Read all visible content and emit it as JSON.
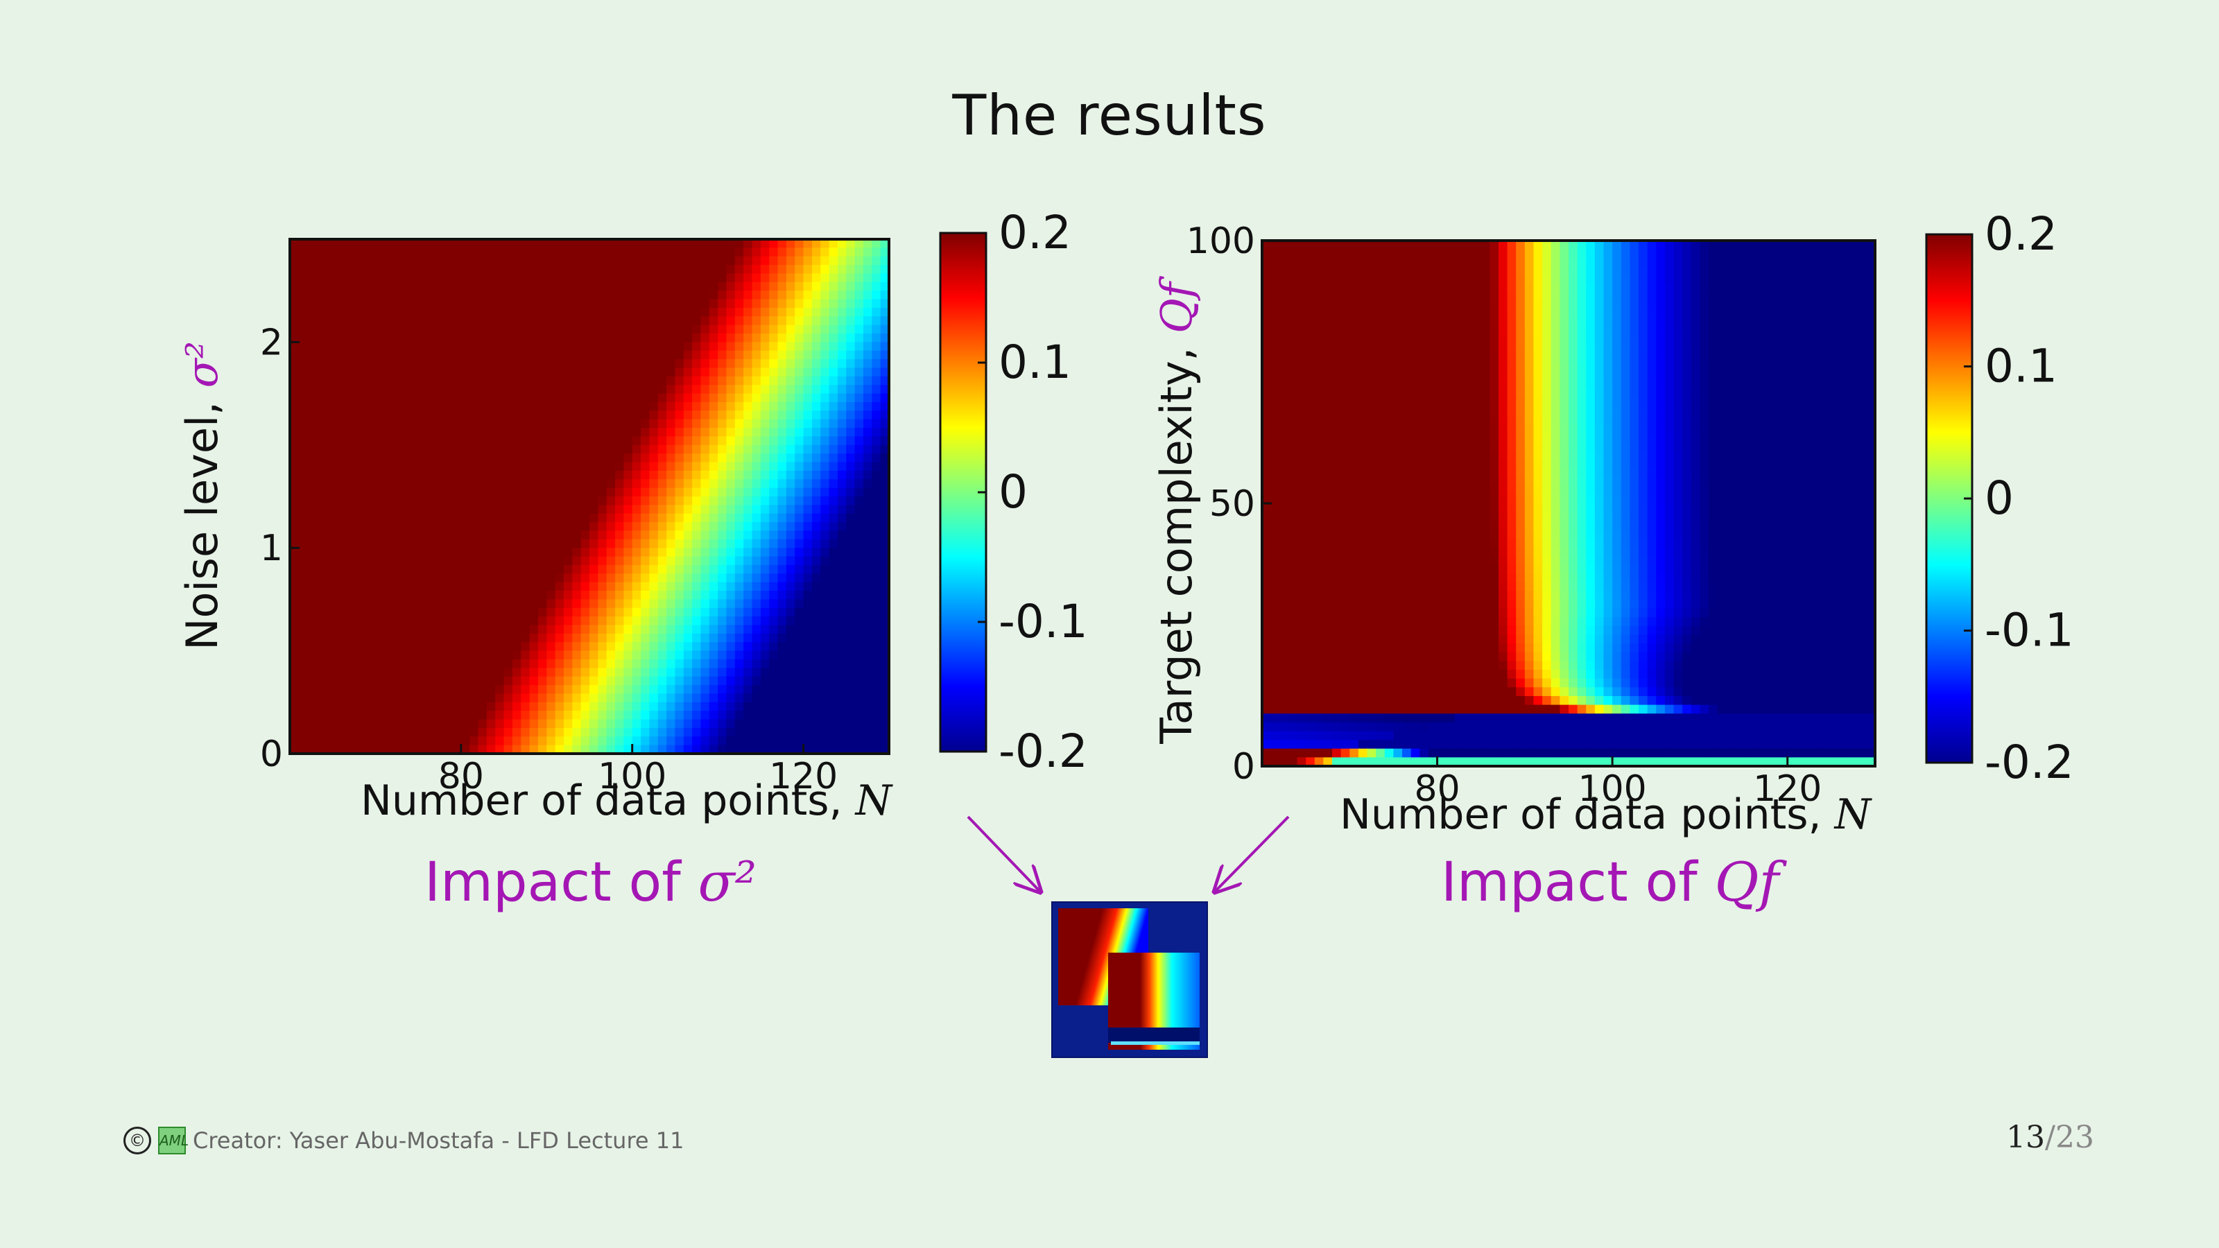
{
  "slide": {
    "title": "The results",
    "page_current": "13",
    "page_total": "23",
    "footer_text": "Creator: Yaser Abu-Mostafa - LFD Lecture 11",
    "copyright_symbol": "©",
    "logo_text": "AML"
  },
  "colors": {
    "background": "#e7f3e7",
    "caption": "#a417b4",
    "arrow": "#a417b4",
    "colormap": "jet"
  },
  "chart_data": [
    {
      "type": "heatmap",
      "ylabel_text": "Noise level, ",
      "ylabel_symbol": "σ²",
      "xlabel_text": "Number of data points, ",
      "xlabel_symbol": "N",
      "caption_text": "Impact of ",
      "caption_symbol": "σ²",
      "xlim": [
        60,
        130
      ],
      "ylim": [
        0,
        2.5
      ],
      "x_ticks": [
        "80",
        "100",
        "120"
      ],
      "y_ticks": [
        "0",
        "1",
        "2"
      ],
      "colorbar": {
        "range": [
          -0.2,
          0.2
        ],
        "ticks": [
          "0.2",
          "0.1",
          "0",
          "-0.1",
          "-0.2"
        ]
      },
      "description_values": {
        "boundary_N_at_sigma0": 80,
        "boundary_N_at_sigma2.5": 113,
        "transition_width_N": 35
      }
    },
    {
      "type": "heatmap",
      "ylabel_text": "Target complexity, ",
      "ylabel_symbol": "Qf",
      "xlabel_text": "Number of data points, ",
      "xlabel_symbol": "N",
      "caption_text": "Impact of ",
      "caption_symbol": "Qf",
      "xlim": [
        60,
        130
      ],
      "ylim": [
        0,
        100
      ],
      "x_ticks": [
        "80",
        "100",
        "120"
      ],
      "y_ticks": [
        "0",
        "50",
        "100"
      ],
      "colorbar": {
        "range": [
          -0.2,
          0.2
        ],
        "ticks": [
          "0.2",
          "0.1",
          "0",
          "-0.1",
          "-0.2"
        ]
      },
      "description_values": {
        "boundary_N_high_Q": 87,
        "lower_band_Q": 10
      }
    }
  ]
}
